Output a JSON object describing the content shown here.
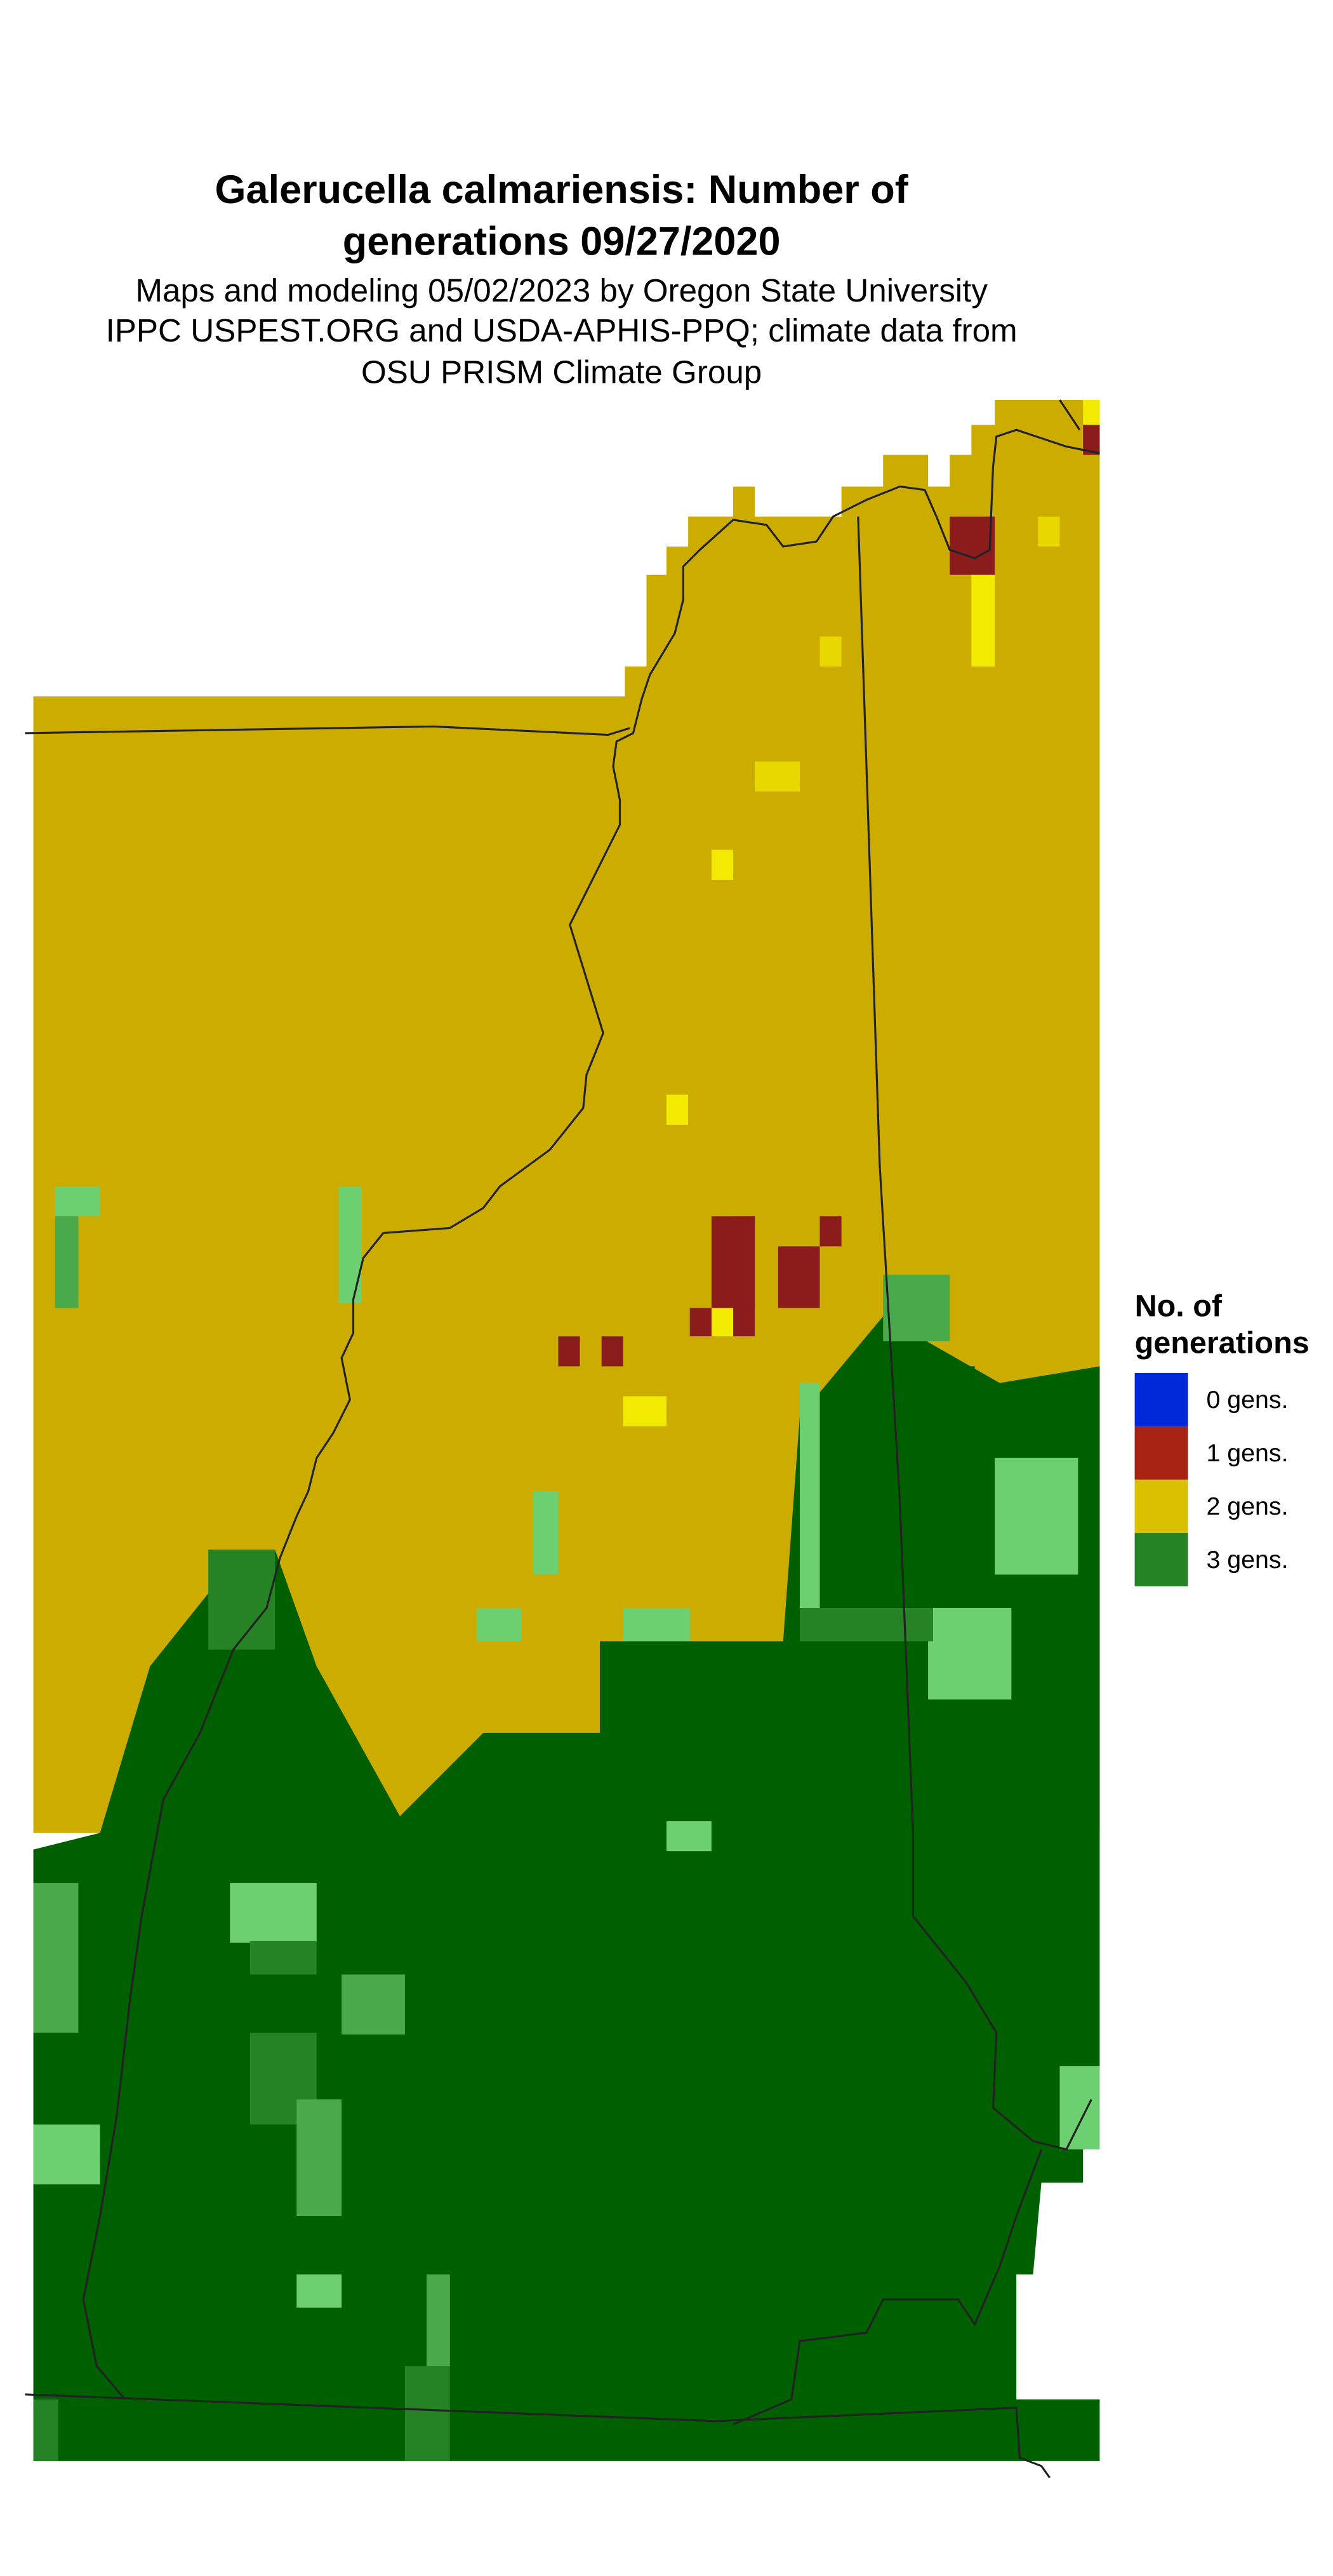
{
  "title": [
    "Galerucella calmariensis: Number of",
    "generations 09/27/2020"
  ],
  "subtitle": [
    "Maps and modeling 05/02/2023 by Oregon State University",
    "IPPC USPEST.ORG and USDA-APHIS-PPQ; climate data from",
    "OSU PRISM Climate Group"
  ],
  "legend": {
    "title": [
      "No. of",
      "generations"
    ],
    "items": [
      {
        "label": "0 gens.",
        "color": "#0029d9"
      },
      {
        "label": "1 gens.",
        "color": "#a62313"
      },
      {
        "label": "2 gens.",
        "color": "#d9c000"
      },
      {
        "label": "3 gens.",
        "color": "#258225"
      }
    ]
  },
  "map_colors": {
    "two_gens_fill": "#cdac00",
    "two_gens_bright": "#e8d800",
    "two_gens_brightest": "#f2ea00",
    "one_gen_fill": "#8b1c1c",
    "three_gens_dark": "#006000",
    "three_gens_mid": "#258225",
    "three_gens_light": "#4aaa4a",
    "three_gens_pale": "#6dd070"
  }
}
